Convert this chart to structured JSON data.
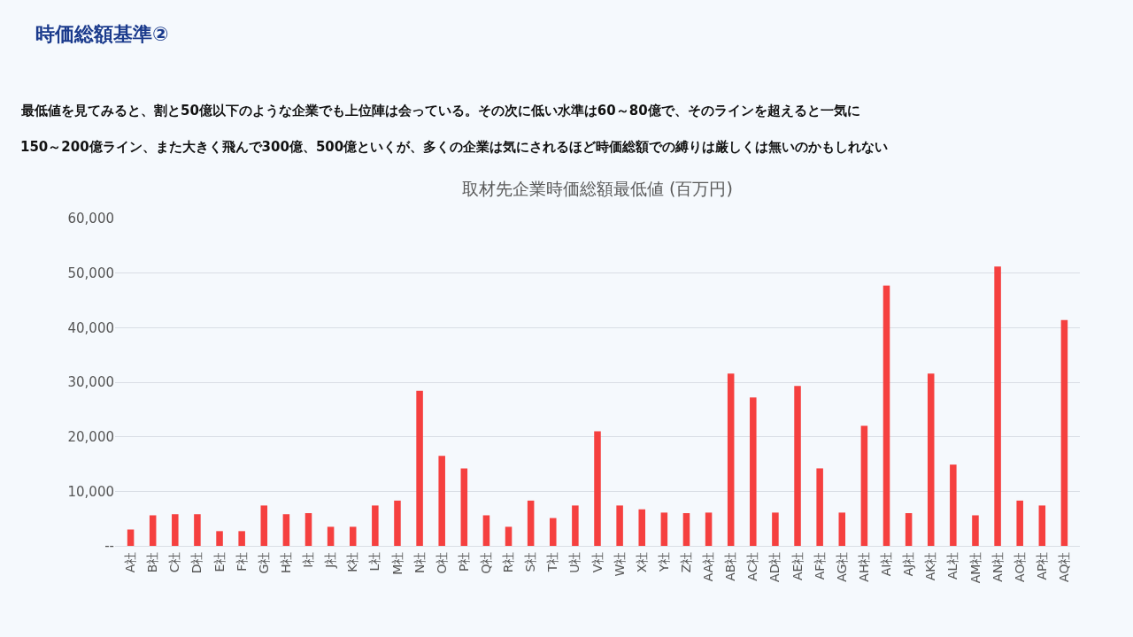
{
  "chart_data": {
    "type": "bar",
    "title": "時価総額基準②",
    "subtitle": "最低値を見てみると、割と50億以下のような企業でも上位陣は会っている。その次に低い水準は60～80億で、そのラインを超えると一気に\n150～200億ライン、また大きく飛んで300億、500億といくが、多くの企業は気にされるほど時価総額での縛りは厳しくは無いのかもしれない",
    "annotations": [
      "取材先企業時価総額最低値 (百万円)"
    ],
    "categories": [
      "A社",
      "B社",
      "C社",
      "D社",
      "E社",
      "F社",
      "G社",
      "H社",
      "I社",
      "J社",
      "K社",
      "L社",
      "M社",
      "N社",
      "O社",
      "P社",
      "Q社",
      "R社",
      "S社",
      "T社",
      "U社",
      "V社",
      "W社",
      "X社",
      "Y社",
      "Z社",
      "AA社",
      "AB社",
      "AC社",
      "AD社",
      "AE社",
      "AF社",
      "AG社",
      "AH社",
      "AI社",
      "AJ社",
      "AK社",
      "AL社",
      "AM社",
      "AN社",
      "AO社",
      "AP社",
      "AQ社"
    ],
    "values": [
      3000,
      5600,
      5800,
      5800,
      2700,
      2700,
      7400,
      5800,
      6000,
      3500,
      3500,
      7400,
      8300,
      28400,
      16500,
      14200,
      5600,
      3500,
      8300,
      5100,
      7400,
      21000,
      7400,
      6700,
      6100,
      6000,
      6100,
      31600,
      27200,
      6100,
      29300,
      14200,
      6100,
      22000,
      47700,
      6000,
      31600,
      14900,
      5600,
      51200,
      8300,
      7400,
      41400
    ],
    "color": "#f5403f",
    "ylim": [
      0,
      60000
    ],
    "yticks": [
      {
        "value": 0,
        "label": "--"
      },
      {
        "value": 10000,
        "label": "10,000"
      },
      {
        "value": 20000,
        "label": "20,000"
      },
      {
        "value": 30000,
        "label": "30,000"
      },
      {
        "value": 40000,
        "label": "40,000"
      },
      {
        "value": 50000,
        "label": "50,000"
      },
      {
        "value": 60000,
        "label": "60,000"
      }
    ],
    "grid": "y"
  }
}
